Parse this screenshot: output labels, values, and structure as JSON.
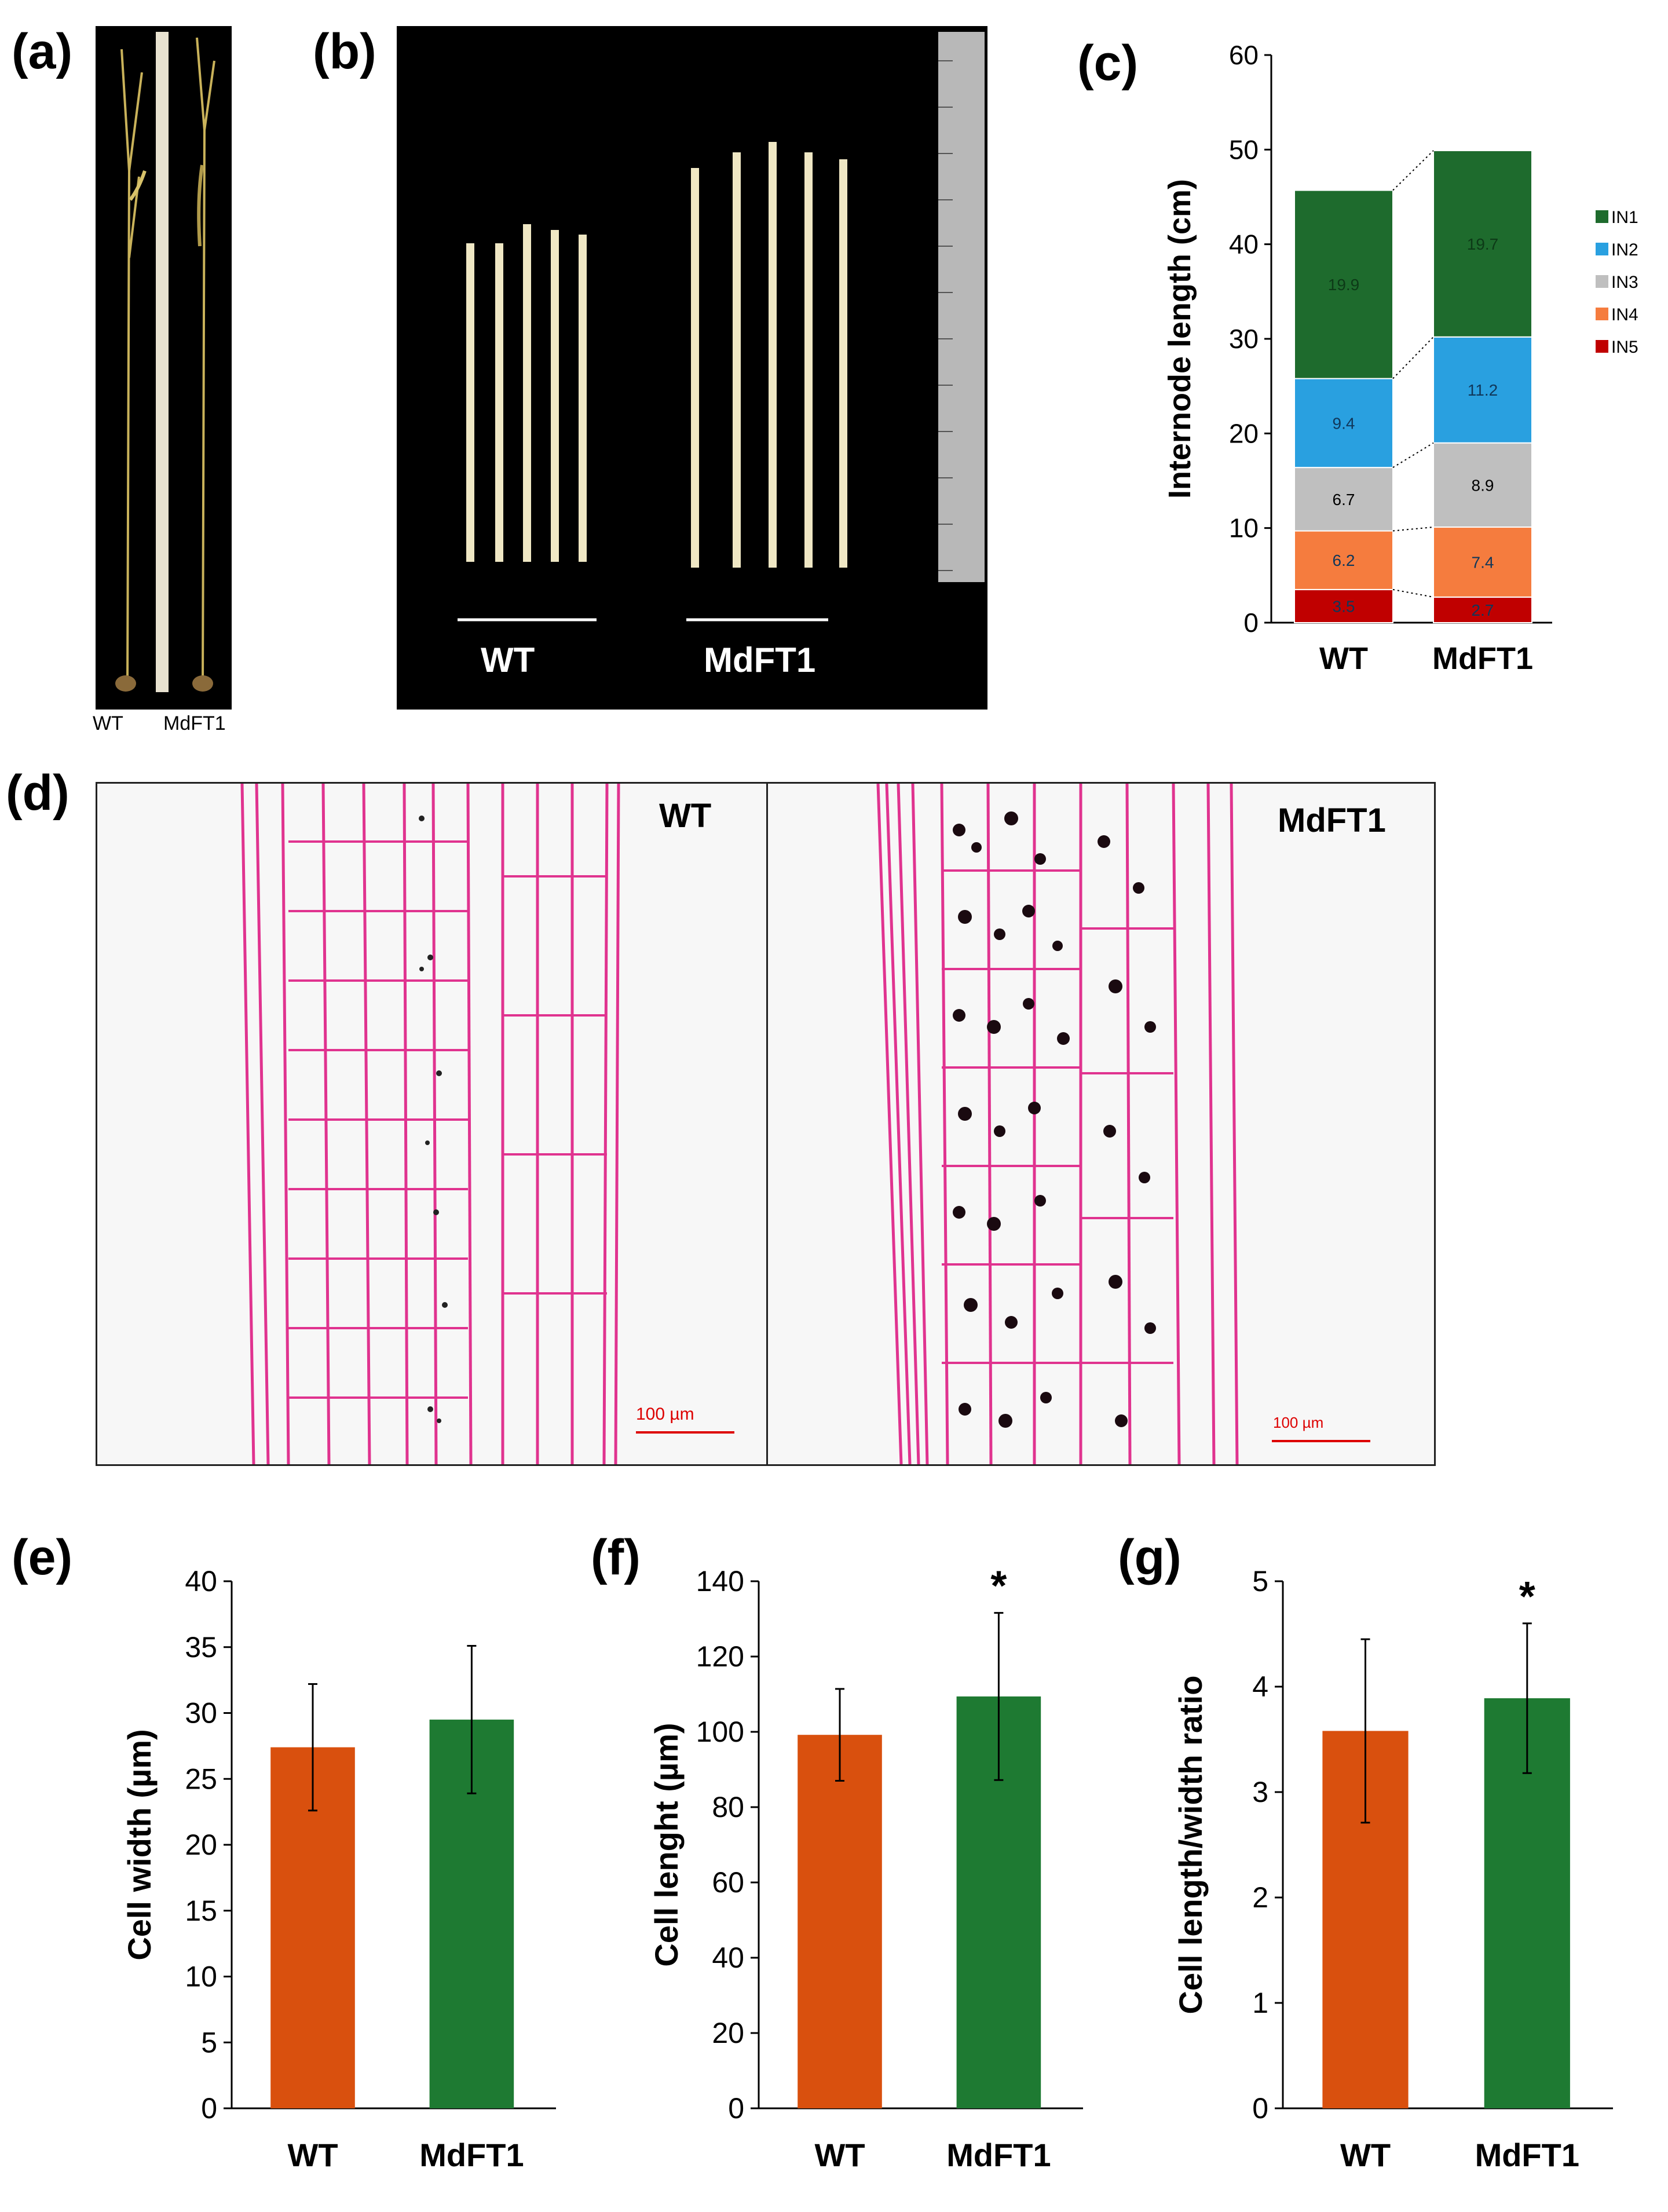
{
  "panels": {
    "a": {
      "letter": "(a)",
      "labels": [
        "WT",
        "MdFT1"
      ]
    },
    "b": {
      "letter": "(b)",
      "labels": [
        "WT",
        "MdFT1"
      ]
    },
    "c": {
      "letter": "(c)"
    },
    "d": {
      "letter": "(d)",
      "labels": [
        "WT",
        "MdFT1"
      ],
      "scale_bar": "100 µm"
    },
    "e": {
      "letter": "(e)"
    },
    "f": {
      "letter": "(f)"
    },
    "g": {
      "letter": "(g)"
    }
  },
  "colors": {
    "IN1": "#1e6b2d",
    "IN2": "#29a0e0",
    "IN3": "#bfbfbf",
    "IN4": "#f57c3e",
    "IN5": "#c00000",
    "wt_bar": "#d9500e",
    "mdft1_bar": "#1e7a32",
    "stain": "#e0338f"
  },
  "chart_data": [
    {
      "id": "c",
      "type": "bar",
      "stacked": true,
      "categories": [
        "WT",
        "MdFT1"
      ],
      "ylabel": "Internode length (cm)",
      "ylim": [
        0,
        60
      ],
      "yticks": [
        0,
        10,
        20,
        30,
        40,
        50,
        60
      ],
      "legend_position": "right",
      "series": [
        {
          "name": "IN5",
          "values": [
            3.5,
            2.7
          ]
        },
        {
          "name": "IN4",
          "values": [
            6.2,
            7.4
          ]
        },
        {
          "name": "IN3",
          "values": [
            6.7,
            8.9
          ]
        },
        {
          "name": "IN2",
          "values": [
            9.4,
            11.2
          ]
        },
        {
          "name": "IN1",
          "values": [
            19.9,
            19.7
          ]
        }
      ]
    },
    {
      "id": "e",
      "type": "bar",
      "categories": [
        "WT",
        "MdFT1"
      ],
      "values": [
        27.4,
        29.5
      ],
      "errors": [
        4.8,
        5.6
      ],
      "significance": [
        "",
        ""
      ],
      "ylabel": "Cell width (µm)",
      "ylim": [
        0,
        40
      ],
      "yticks": [
        0,
        5,
        10,
        15,
        20,
        25,
        30,
        35,
        40
      ]
    },
    {
      "id": "f",
      "type": "bar",
      "categories": [
        "WT",
        "MdFT1"
      ],
      "values": [
        99.2,
        109.4
      ],
      "errors": [
        12.2,
        22.2
      ],
      "significance": [
        "",
        "*"
      ],
      "ylabel": "Cell lenght (µm)",
      "ylim": [
        0,
        140
      ],
      "yticks": [
        0,
        20,
        40,
        60,
        80,
        100,
        120,
        140
      ]
    },
    {
      "id": "g",
      "type": "bar",
      "categories": [
        "WT",
        "MdFT1"
      ],
      "values": [
        3.58,
        3.89
      ],
      "errors": [
        0.87,
        0.71
      ],
      "significance": [
        "",
        "*"
      ],
      "ylabel": "Cell length/width ratio",
      "ylim": [
        0,
        5
      ],
      "yticks": [
        0,
        1,
        2,
        3,
        4,
        5
      ]
    }
  ]
}
